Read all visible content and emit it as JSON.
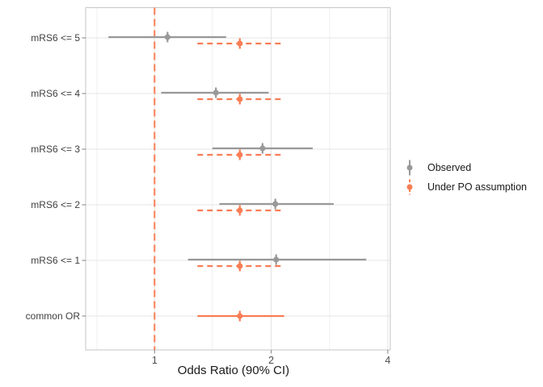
{
  "chart_data": {
    "type": "pointrange",
    "orientation": "horizontal",
    "title": "",
    "xlabel": "Odds Ratio (90% CI)",
    "x_scale": "log2",
    "x_ticks": [
      1,
      2,
      4
    ],
    "x_minor_ticks": [
      0.71,
      1.41,
      2.83
    ],
    "x_domain": [
      0.66,
      4.06
    ],
    "reference_line": {
      "x": 1,
      "color": "#F87D54",
      "style": "dashed"
    },
    "categories": [
      "mRS6 <= 5",
      "mRS6 <= 4",
      "mRS6 <= 3",
      "mRS6 <= 2",
      "mRS6 <= 1",
      "common OR"
    ],
    "legend_position": "right",
    "grid": true,
    "series": [
      {
        "name": "Observed",
        "color": "#999999",
        "line_style": "solid",
        "points": [
          {
            "category": "mRS6 <= 5",
            "or": 1.08,
            "lo": 0.76,
            "hi": 1.53
          },
          {
            "category": "mRS6 <= 4",
            "or": 1.44,
            "lo": 1.04,
            "hi": 1.97
          },
          {
            "category": "mRS6 <= 3",
            "or": 1.9,
            "lo": 1.41,
            "hi": 2.56
          },
          {
            "category": "mRS6 <= 2",
            "or": 2.05,
            "lo": 1.47,
            "hi": 2.9
          },
          {
            "category": "mRS6 <= 1",
            "or": 2.06,
            "lo": 1.22,
            "hi": 3.52
          }
        ]
      },
      {
        "name": "Under PO assumption",
        "color": "#F87D54",
        "line_style": "dashed",
        "points": [
          {
            "category": "mRS6 <= 5",
            "or": 1.66,
            "lo": 1.29,
            "hi": 2.16,
            "line_style": "dashed"
          },
          {
            "category": "mRS6 <= 4",
            "or": 1.66,
            "lo": 1.29,
            "hi": 2.16,
            "line_style": "dashed"
          },
          {
            "category": "mRS6 <= 3",
            "or": 1.66,
            "lo": 1.29,
            "hi": 2.16,
            "line_style": "dashed"
          },
          {
            "category": "mRS6 <= 2",
            "or": 1.66,
            "lo": 1.29,
            "hi": 2.16,
            "line_style": "dashed"
          },
          {
            "category": "mRS6 <= 1",
            "or": 1.66,
            "lo": 1.29,
            "hi": 2.16,
            "line_style": "dashed"
          },
          {
            "category": "common OR",
            "or": 1.66,
            "lo": 1.29,
            "hi": 2.16,
            "line_style": "solid"
          }
        ]
      }
    ]
  }
}
